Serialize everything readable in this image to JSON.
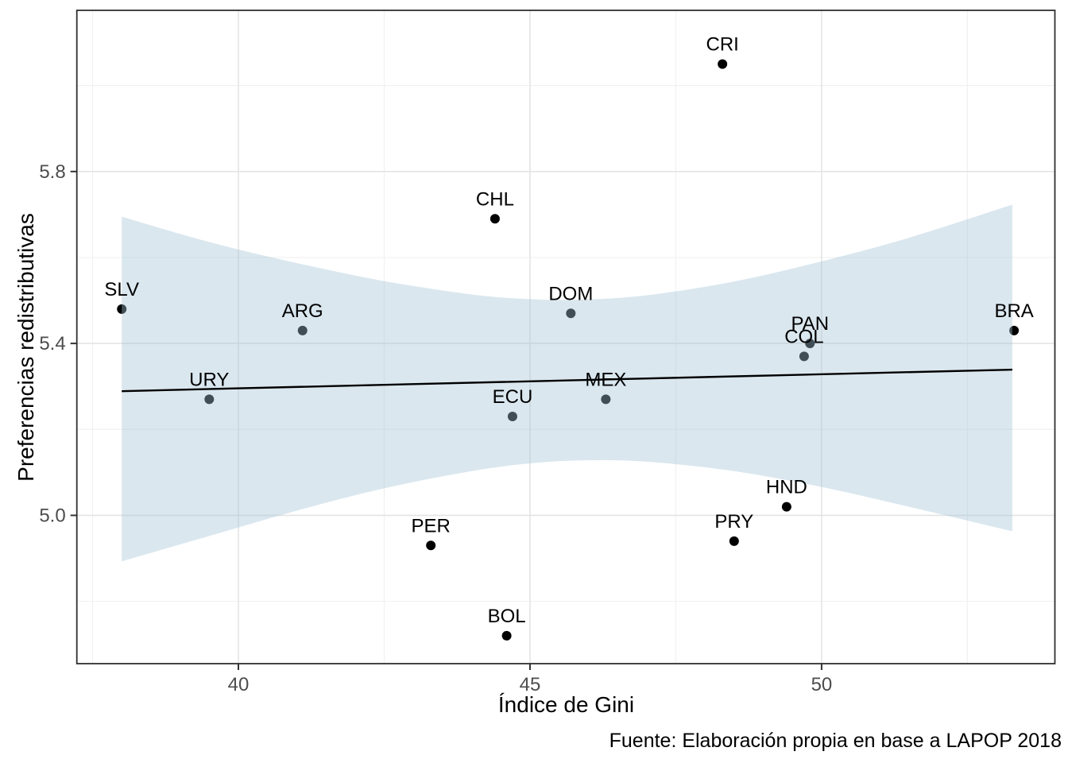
{
  "chart_data": {
    "type": "scatter",
    "title": "",
    "xlabel": "Índice de Gini",
    "ylabel": "Preferencias redistributivas",
    "caption": "Fuente: Elaboración propia en base a LAPOP 2018",
    "xlim": [
      37.23,
      54.0
    ],
    "ylim": [
      4.655,
      6.175
    ],
    "grid": true,
    "legend": false,
    "x_ticks": {
      "major": [
        40,
        45,
        50
      ],
      "labels": [
        "40",
        "45",
        "50"
      ],
      "minor": [
        37.5,
        42.5,
        47.5,
        52.5
      ]
    },
    "y_ticks": {
      "major": [
        5.0,
        5.4,
        5.8
      ],
      "labels": [
        "5.0",
        "5.4",
        "5.8"
      ],
      "minor": [
        4.8,
        5.2,
        5.6,
        6.0
      ]
    },
    "points": [
      {
        "label": "SLV",
        "x": 38.0,
        "y": 5.48
      },
      {
        "label": "URY",
        "x": 39.5,
        "y": 5.27
      },
      {
        "label": "ARG",
        "x": 41.1,
        "y": 5.43
      },
      {
        "label": "PER",
        "x": 43.3,
        "y": 4.93
      },
      {
        "label": "CHL",
        "x": 44.4,
        "y": 5.69
      },
      {
        "label": "BOL",
        "x": 44.6,
        "y": 4.72
      },
      {
        "label": "ECU",
        "x": 44.7,
        "y": 5.23
      },
      {
        "label": "DOM",
        "x": 45.7,
        "y": 5.47
      },
      {
        "label": "MEX",
        "x": 46.3,
        "y": 5.27
      },
      {
        "label": "CRI",
        "x": 48.3,
        "y": 6.05
      },
      {
        "label": "PRY",
        "x": 48.5,
        "y": 4.94
      },
      {
        "label": "HND",
        "x": 49.4,
        "y": 5.02
      },
      {
        "label": "COL",
        "x": 49.7,
        "y": 5.37
      },
      {
        "label": "PAN",
        "x": 49.8,
        "y": 5.4
      },
      {
        "label": "BRA",
        "x": 53.3,
        "y": 5.43
      }
    ],
    "trend_line": {
      "x1": 38.0,
      "y1": 5.289,
      "x2": 53.27,
      "y2": 5.339
    },
    "confidence_band": [
      {
        "x": 38.0,
        "lo": 4.893,
        "hi": 5.695
      },
      {
        "x": 39.5,
        "lo": 4.952,
        "hi": 5.636
      },
      {
        "x": 41.0,
        "lo": 5.011,
        "hi": 5.587
      },
      {
        "x": 42.5,
        "lo": 5.063,
        "hi": 5.545
      },
      {
        "x": 44.0,
        "lo": 5.103,
        "hi": 5.514
      },
      {
        "x": 45.0,
        "lo": 5.121,
        "hi": 5.503
      },
      {
        "x": 45.9,
        "lo": 5.128,
        "hi": 5.502
      },
      {
        "x": 47.0,
        "lo": 5.125,
        "hi": 5.512
      },
      {
        "x": 48.5,
        "lo": 5.103,
        "hi": 5.544
      },
      {
        "x": 50.0,
        "lo": 5.066,
        "hi": 5.591
      },
      {
        "x": 51.5,
        "lo": 5.02,
        "hi": 5.646
      },
      {
        "x": 53.27,
        "lo": 4.963,
        "hi": 5.723
      }
    ],
    "colors": {
      "point": "#000000",
      "trend_line": "#000000",
      "confidence_band": "rgba(163,195,216,0.40)",
      "grid_major": "#e4e4e4",
      "grid_minor": "#f1f1f1",
      "axis_text": "#4d4d4d",
      "tick_mark": "#333333",
      "panel_border": "#2f2f2f",
      "background": "#ffffff"
    }
  }
}
